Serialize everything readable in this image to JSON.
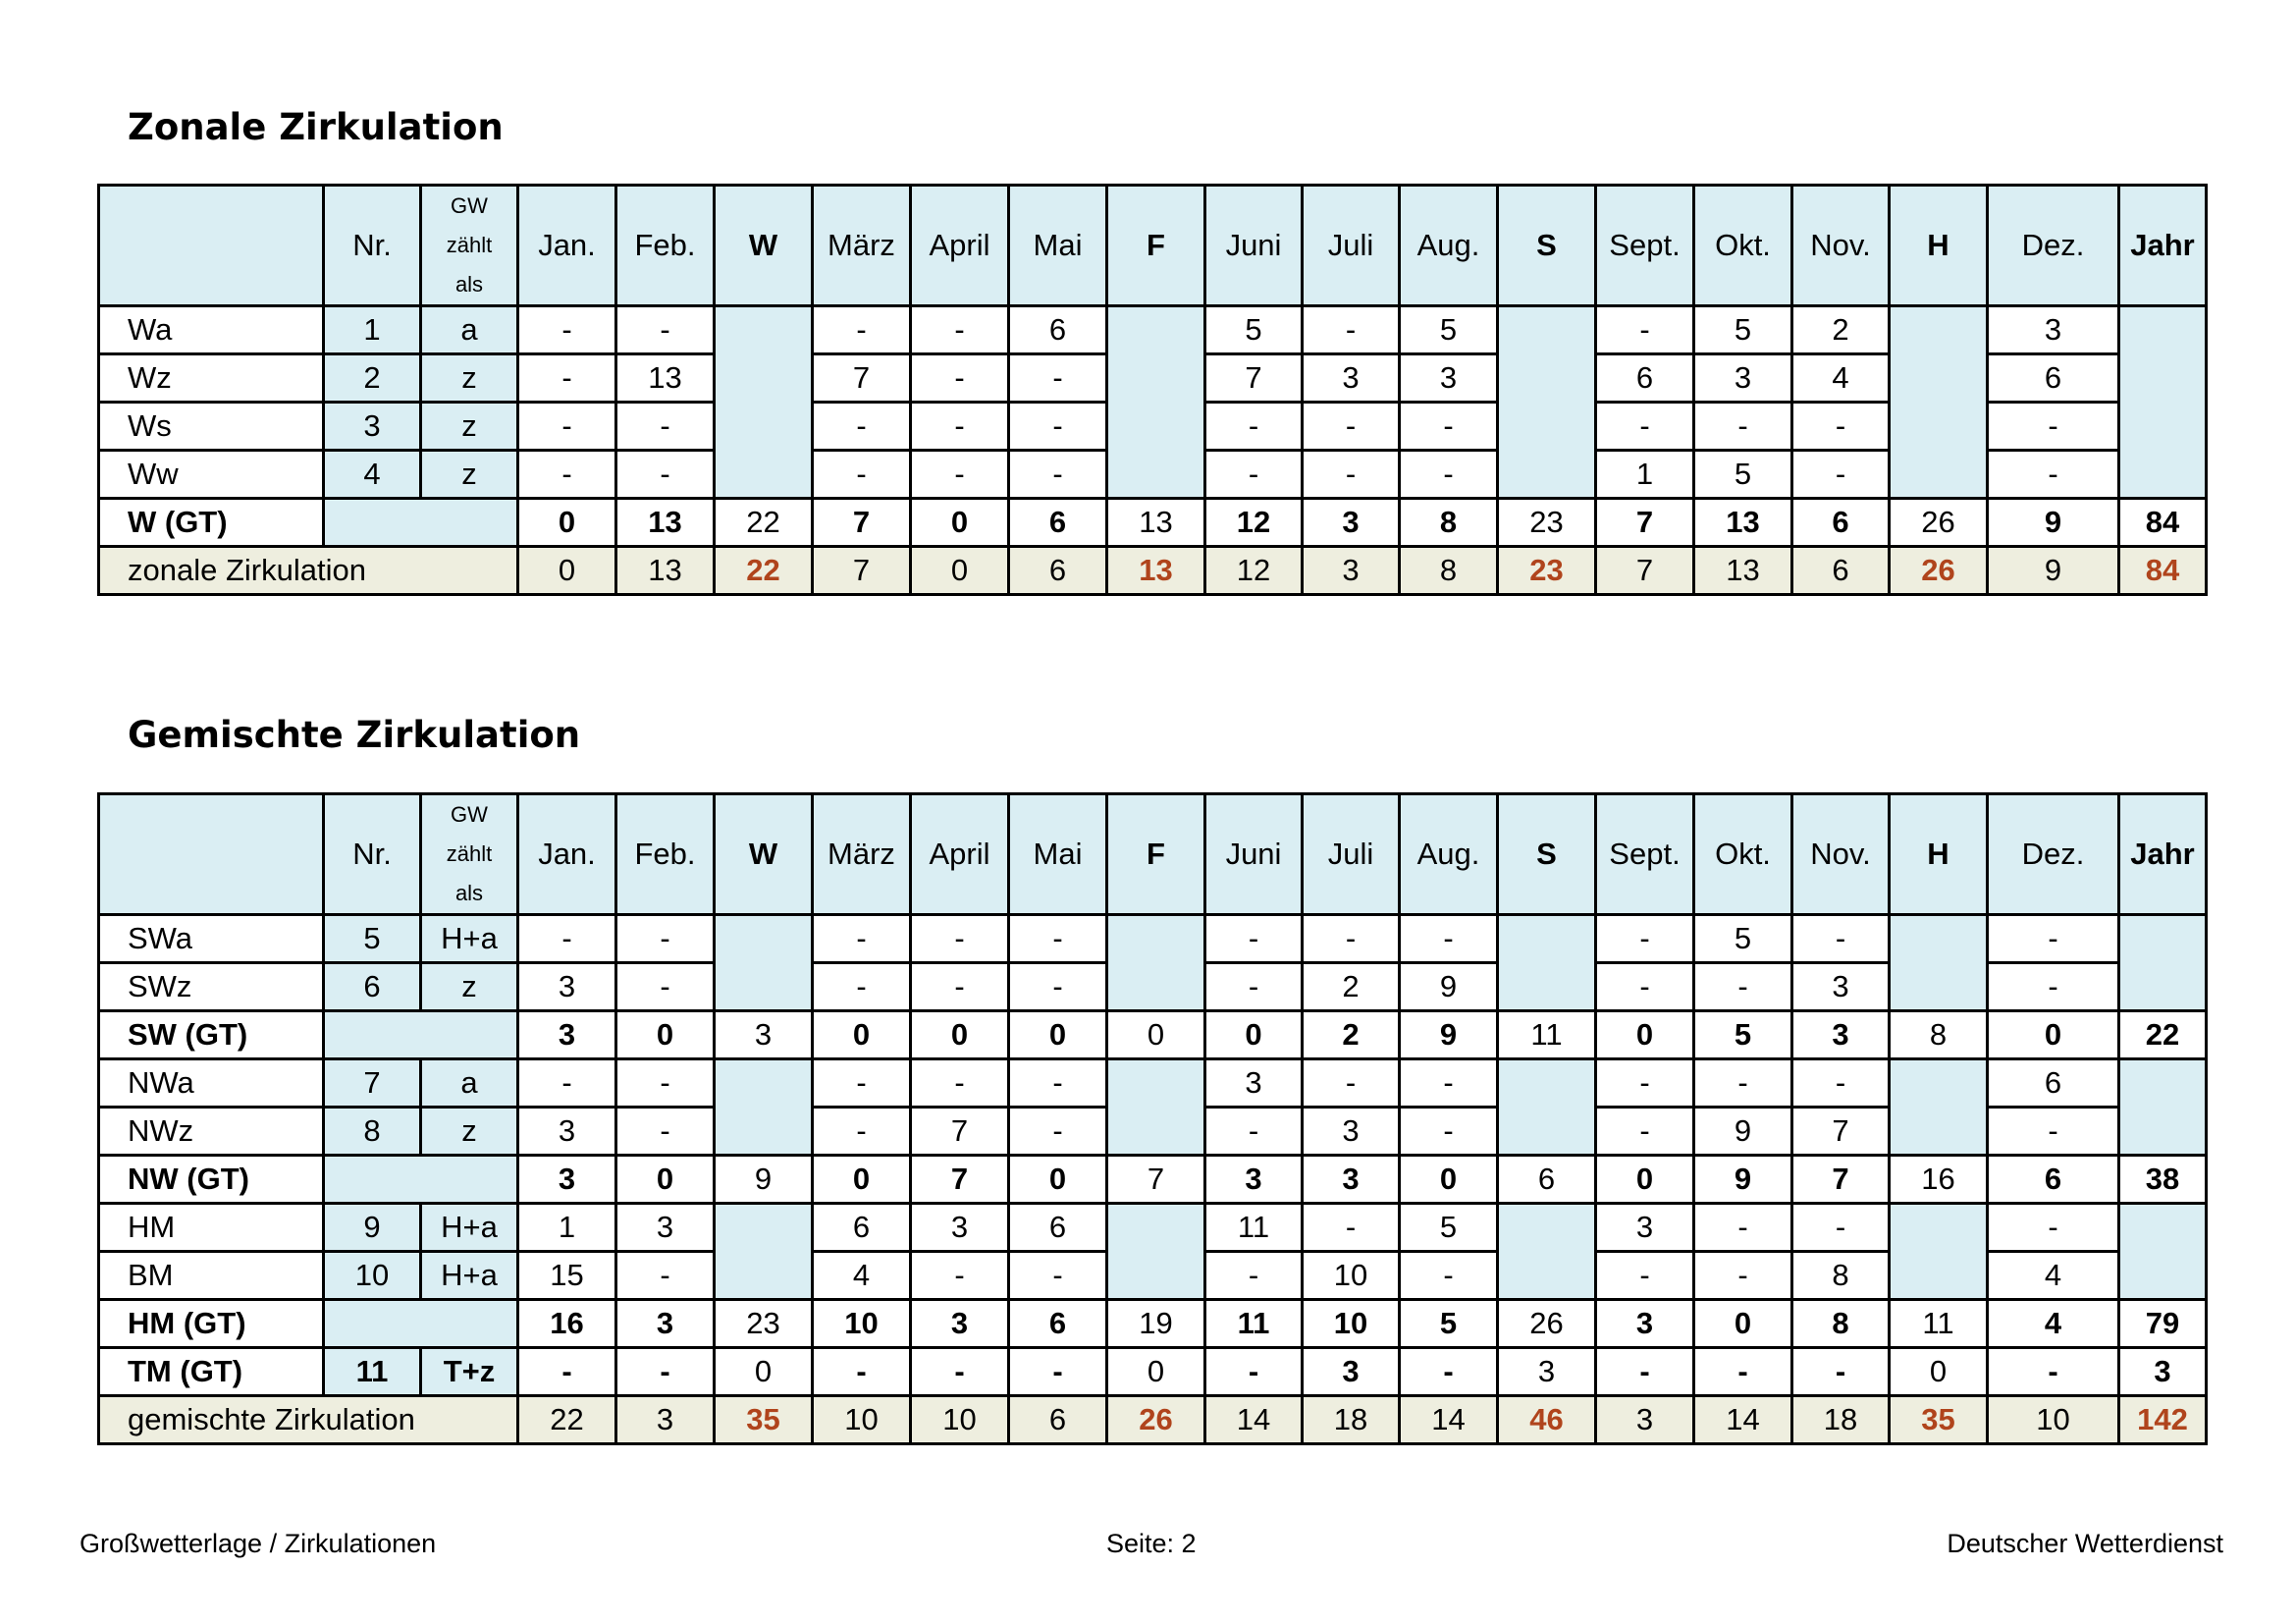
{
  "section1": {
    "title": "Zonale Zirkulation",
    "rows": [
      {
        "label": "Wa",
        "nr": "1",
        "gw": "a",
        "jan": "-",
        "feb": "-",
        "maerz": "-",
        "april": "-",
        "mai": "6",
        "juni": "5",
        "juli": "-",
        "aug": "5",
        "sept": "-",
        "okt": "5",
        "nov": "2",
        "dez": "3"
      },
      {
        "label": "Wz",
        "nr": "2",
        "gw": "z",
        "jan": "-",
        "feb": "13",
        "maerz": "7",
        "april": "-",
        "mai": "-",
        "juni": "7",
        "juli": "3",
        "aug": "3",
        "sept": "6",
        "okt": "3",
        "nov": "4",
        "dez": "6"
      },
      {
        "label": "Ws",
        "nr": "3",
        "gw": "z",
        "jan": "-",
        "feb": "-",
        "maerz": "-",
        "april": "-",
        "mai": "-",
        "juni": "-",
        "juli": "-",
        "aug": "-",
        "sept": "-",
        "okt": "-",
        "nov": "-",
        "dez": "-"
      },
      {
        "label": "Ww",
        "nr": "4",
        "gw": "z",
        "jan": "-",
        "feb": "-",
        "maerz": "-",
        "april": "-",
        "mai": "-",
        "juni": "-",
        "juli": "-",
        "aug": "-",
        "sept": "1",
        "okt": "5",
        "nov": "-",
        "dez": "-"
      }
    ],
    "gt": {
      "label": "W (GT)",
      "jan": "0",
      "feb": "13",
      "w": "22",
      "maerz": "7",
      "april": "0",
      "mai": "6",
      "f": "13",
      "juni": "12",
      "juli": "3",
      "aug": "8",
      "s": "23",
      "sept": "7",
      "okt": "13",
      "nov": "6",
      "h": "26",
      "dez": "9",
      "jahr": "84"
    },
    "total": {
      "label": "zonale Zirkulation",
      "jan": "0",
      "feb": "13",
      "w": "22",
      "maerz": "7",
      "april": "0",
      "mai": "6",
      "f": "13",
      "juni": "12",
      "juli": "3",
      "aug": "8",
      "s": "23",
      "sept": "7",
      "okt": "13",
      "nov": "6",
      "h": "26",
      "dez": "9",
      "jahr": "84"
    }
  },
  "section2": {
    "title": "Gemischte Zirkulation",
    "swa": {
      "label": "SWa",
      "nr": "5",
      "gw": "H+a",
      "jan": "-",
      "feb": "-",
      "maerz": "-",
      "april": "-",
      "mai": "-",
      "juni": "-",
      "juli": "-",
      "aug": "-",
      "sept": "-",
      "okt": "5",
      "nov": "-",
      "dez": "-"
    },
    "swz": {
      "label": "SWz",
      "nr": "6",
      "gw": "z",
      "jan": "3",
      "feb": "-",
      "maerz": "-",
      "april": "-",
      "mai": "-",
      "juni": "-",
      "juli": "2",
      "aug": "9",
      "sept": "-",
      "okt": "-",
      "nov": "3",
      "dez": "-"
    },
    "swgt": {
      "label": "SW (GT)",
      "jan": "3",
      "feb": "0",
      "w": "3",
      "maerz": "0",
      "april": "0",
      "mai": "0",
      "f": "0",
      "juni": "0",
      "juli": "2",
      "aug": "9",
      "s": "11",
      "sept": "0",
      "okt": "5",
      "nov": "3",
      "h": "8",
      "dez": "0",
      "jahr": "22"
    },
    "nwa": {
      "label": "NWa",
      "nr": "7",
      "gw": "a",
      "jan": "-",
      "feb": "-",
      "maerz": "-",
      "april": "-",
      "mai": "-",
      "juni": "3",
      "juli": "-",
      "aug": "-",
      "sept": "-",
      "okt": "-",
      "nov": "-",
      "dez": "6"
    },
    "nwz": {
      "label": "NWz",
      "nr": "8",
      "gw": "z",
      "jan": "3",
      "feb": "-",
      "maerz": "-",
      "april": "7",
      "mai": "-",
      "juni": "-",
      "juli": "3",
      "aug": "-",
      "sept": "-",
      "okt": "9",
      "nov": "7",
      "dez": "-"
    },
    "nwgt": {
      "label": "NW (GT)",
      "jan": "3",
      "feb": "0",
      "w": "9",
      "maerz": "0",
      "april": "7",
      "mai": "0",
      "f": "7",
      "juni": "3",
      "juli": "3",
      "aug": "0",
      "s": "6",
      "sept": "0",
      "okt": "9",
      "nov": "7",
      "h": "16",
      "dez": "6",
      "jahr": "38"
    },
    "hm": {
      "label": "HM",
      "nr": "9",
      "gw": "H+a",
      "jan": "1",
      "feb": "3",
      "maerz": "6",
      "april": "3",
      "mai": "6",
      "juni": "11",
      "juli": "-",
      "aug": "5",
      "sept": "3",
      "okt": "-",
      "nov": "-",
      "dez": "-"
    },
    "bm": {
      "label": "BM",
      "nr": "10",
      "gw": "H+a",
      "jan": "15",
      "feb": "-",
      "maerz": "4",
      "april": "-",
      "mai": "-",
      "juni": "-",
      "juli": "10",
      "aug": "-",
      "sept": "-",
      "okt": "-",
      "nov": "8",
      "dez": "4"
    },
    "hmgt": {
      "label": "HM (GT)",
      "jan": "16",
      "feb": "3",
      "w": "23",
      "maerz": "10",
      "april": "3",
      "mai": "6",
      "f": "19",
      "juni": "11",
      "juli": "10",
      "aug": "5",
      "s": "26",
      "sept": "3",
      "okt": "0",
      "nov": "8",
      "h": "11",
      "dez": "4",
      "jahr": "79"
    },
    "tmgt": {
      "label": "TM (GT)",
      "nr": "11",
      "gw": "T+z",
      "jan": "-",
      "feb": "-",
      "w": "0",
      "maerz": "-",
      "april": "-",
      "mai": "-",
      "f": "0",
      "juni": "-",
      "juli": "3",
      "aug": "-",
      "s": "3",
      "sept": "-",
      "okt": "-",
      "nov": "-",
      "h": "0",
      "dez": "-",
      "jahr": "3"
    },
    "total": {
      "label": "gemischte Zirkulation",
      "jan": "22",
      "feb": "3",
      "w": "35",
      "maerz": "10",
      "april": "10",
      "mai": "6",
      "f": "26",
      "juni": "14",
      "juli": "18",
      "aug": "14",
      "s": "46",
      "sept": "3",
      "okt": "14",
      "nov": "18",
      "h": "35",
      "dez": "10",
      "jahr": "142"
    }
  },
  "header": {
    "nr": "Nr.",
    "gw": [
      "GW",
      "zählt",
      "als"
    ],
    "jan": "Jan.",
    "feb": "Feb.",
    "w": "W",
    "maerz": "März",
    "april": "April",
    "mai": "Mai",
    "f": "F",
    "juni": "Juni",
    "juli": "Juli",
    "aug": "Aug.",
    "s": "S",
    "sept": "Sept.",
    "okt": "Okt.",
    "nov": "Nov.",
    "h": "H",
    "dez": "Dez.",
    "jahr": "Jahr"
  },
  "footer": {
    "left": "Großwetterlage / Zirkulationen",
    "center": "Seite: 2",
    "right": "Deutscher Wetterdienst"
  },
  "colors": {
    "header_fill": "#daeef3",
    "total_fill": "#eeeedf",
    "season_total_text": "#b0441c"
  }
}
